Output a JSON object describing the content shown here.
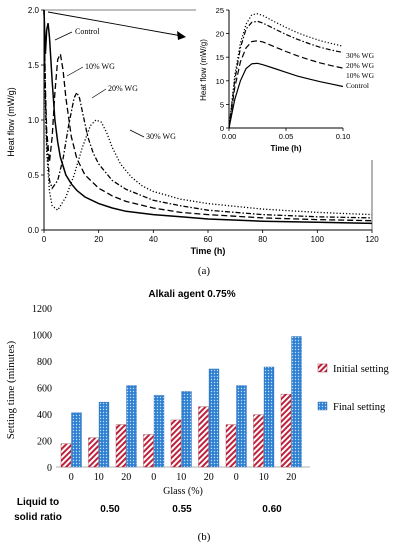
{
  "panel_a": {
    "label": "(a)",
    "chart_data": {
      "type": "line",
      "xlabel": "Time (h)",
      "ylabel": "Heat flow (mW/g)",
      "xlim": [
        0,
        120
      ],
      "ylim": [
        0,
        2.0
      ],
      "xticks": [
        "0",
        "20",
        "40",
        "60",
        "80",
        "100",
        "120"
      ],
      "yticks": [
        "0.0",
        "0.5",
        "1.0",
        "1.5",
        "2.0"
      ],
      "grid": false,
      "series": [
        {
          "name": "Control",
          "style": "solid",
          "x": [
            0,
            0.5,
            1,
            1.5,
            2,
            3,
            4,
            5,
            6,
            8,
            10,
            12,
            15,
            20,
            25,
            30,
            40,
            50,
            60,
            80,
            100,
            120
          ],
          "y": [
            2.0,
            1.6,
            1.82,
            1.88,
            1.75,
            1.35,
            1.0,
            0.8,
            0.66,
            0.5,
            0.42,
            0.36,
            0.3,
            0.24,
            0.2,
            0.17,
            0.14,
            0.12,
            0.1,
            0.08,
            0.07,
            0.06
          ]
        },
        {
          "name": "10% WG",
          "style": "dashed",
          "x": [
            0,
            0.5,
            1,
            2,
            3,
            4,
            5,
            6,
            7,
            8,
            10,
            12,
            15,
            20,
            25,
            30,
            40,
            50,
            60,
            80,
            100,
            120
          ],
          "y": [
            2.0,
            1.3,
            0.9,
            0.62,
            0.85,
            1.25,
            1.55,
            1.6,
            1.45,
            1.2,
            0.85,
            0.65,
            0.5,
            0.38,
            0.31,
            0.26,
            0.2,
            0.16,
            0.14,
            0.11,
            0.095,
            0.085
          ]
        },
        {
          "name": "20% WG",
          "style": "dash-dot",
          "x": [
            0,
            0.5,
            1,
            2,
            3,
            5,
            7,
            9,
            11,
            12,
            13,
            14,
            16,
            18,
            20,
            25,
            30,
            40,
            50,
            60,
            80,
            100,
            120
          ],
          "y": [
            2.0,
            1.2,
            0.8,
            0.45,
            0.38,
            0.45,
            0.65,
            0.95,
            1.2,
            1.25,
            1.2,
            1.08,
            0.85,
            0.7,
            0.6,
            0.45,
            0.37,
            0.27,
            0.22,
            0.18,
            0.14,
            0.12,
            0.11
          ]
        },
        {
          "name": "30% WG",
          "style": "dotted",
          "x": [
            0,
            0.5,
            1,
            2,
            3,
            5,
            8,
            11,
            14,
            17,
            19,
            21,
            23,
            25,
            28,
            32,
            36,
            40,
            50,
            60,
            80,
            100,
            120
          ],
          "y": [
            2.0,
            1.1,
            0.7,
            0.35,
            0.22,
            0.18,
            0.3,
            0.5,
            0.75,
            0.95,
            1.0,
            0.98,
            0.88,
            0.75,
            0.6,
            0.48,
            0.4,
            0.35,
            0.28,
            0.24,
            0.19,
            0.16,
            0.14
          ]
        }
      ],
      "labels": [
        "Control",
        "10% WG",
        "20% WG",
        "30% WG"
      ]
    },
    "inset": {
      "type": "line",
      "xlabel": "Time (h)",
      "ylabel": "Heat flow (mW/g)",
      "xlim": [
        0,
        0.1
      ],
      "ylim": [
        0,
        25
      ],
      "xticks": [
        "0.00",
        "0.05",
        "0.10"
      ],
      "yticks": [
        "0",
        "5",
        "10",
        "15",
        "20",
        "25"
      ],
      "series": [
        {
          "name": "30% WG",
          "style": "dotted",
          "x": [
            0,
            0.005,
            0.01,
            0.015,
            0.02,
            0.025,
            0.03,
            0.04,
            0.05,
            0.06,
            0.07,
            0.08,
            0.09,
            0.1
          ],
          "y": [
            0,
            11,
            18,
            22,
            24,
            24.2,
            23.8,
            22.5,
            21.3,
            20.2,
            19.3,
            18.5,
            17.9,
            17.3
          ]
        },
        {
          "name": "20% WG",
          "style": "dash-dot",
          "x": [
            0,
            0.005,
            0.01,
            0.015,
            0.02,
            0.025,
            0.03,
            0.04,
            0.05,
            0.06,
            0.07,
            0.08,
            0.09,
            0.1
          ],
          "y": [
            0,
            10,
            17,
            21,
            22.4,
            22.6,
            22.2,
            21,
            19.8,
            18.8,
            17.9,
            17.1,
            16.5,
            16
          ]
        },
        {
          "name": "10% WG",
          "style": "dashed",
          "x": [
            0,
            0.005,
            0.01,
            0.015,
            0.02,
            0.025,
            0.03,
            0.04,
            0.05,
            0.06,
            0.07,
            0.08,
            0.09,
            0.1
          ],
          "y": [
            0,
            8.5,
            14,
            17,
            18.3,
            18.5,
            18.2,
            17.2,
            16.2,
            15.3,
            14.5,
            13.8,
            13.2,
            12.7
          ]
        },
        {
          "name": "Control",
          "style": "solid",
          "x": [
            0,
            0.005,
            0.01,
            0.015,
            0.02,
            0.025,
            0.03,
            0.04,
            0.05,
            0.06,
            0.07,
            0.08,
            0.09,
            0.1
          ],
          "y": [
            0,
            6,
            10,
            12.6,
            13.6,
            13.7,
            13.4,
            12.6,
            11.8,
            11.0,
            10.4,
            9.8,
            9.3,
            8.8
          ]
        }
      ],
      "legend_labels": [
        "30% WG",
        "20% WG",
        "10% WG",
        "Control"
      ]
    }
  },
  "panel_b": {
    "label": "(b)",
    "chart_data": {
      "type": "bar",
      "title": "Alkali agent 0.75%",
      "xlabel": "Glass (%)",
      "ylabel": "Setting time (minutes)",
      "ylim": [
        0,
        1200
      ],
      "yticks": [
        "0",
        "200",
        "400",
        "600",
        "800",
        "1000",
        "1200"
      ],
      "categories": [
        "0",
        "10",
        "20",
        "0",
        "10",
        "20",
        "0",
        "10",
        "20"
      ],
      "groups": [
        {
          "label": "0.50",
          "span": [
            0,
            2
          ]
        },
        {
          "label": "0.55",
          "span": [
            3,
            5
          ]
        },
        {
          "label": "0.60",
          "span": [
            6,
            8
          ]
        }
      ],
      "group_axis_label": [
        "Liquid to",
        "solid ratio"
      ],
      "series": [
        {
          "name": "Initial setting",
          "color": "#c0203a",
          "values": [
            175,
            220,
            320,
            245,
            355,
            455,
            320,
            395,
            550
          ]
        },
        {
          "name": "Final setting",
          "color": "#2f7fd1",
          "values": [
            410,
            490,
            615,
            540,
            570,
            740,
            615,
            755,
            985
          ]
        }
      ],
      "legend": "right"
    }
  }
}
